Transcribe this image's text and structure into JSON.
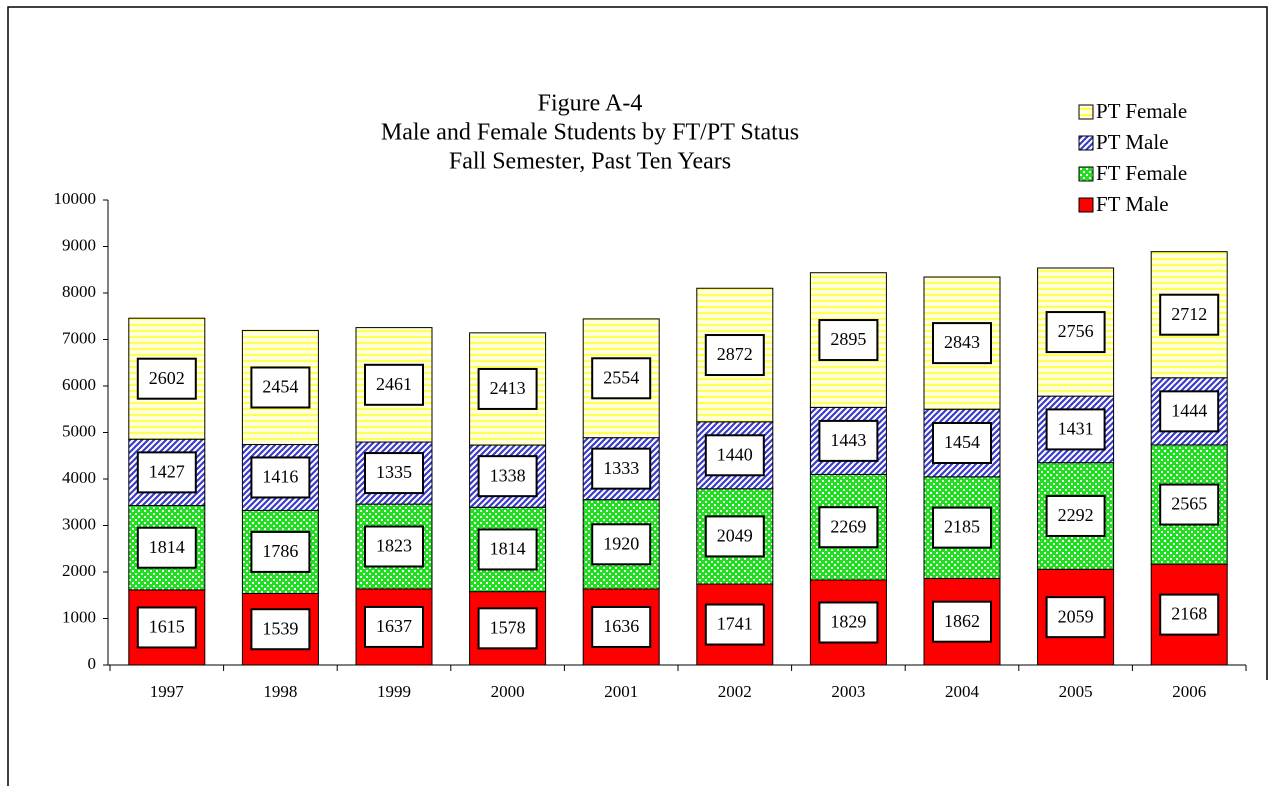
{
  "chart_data": {
    "type": "stacked_bar",
    "title": "Figure A-4",
    "subtitle": [
      "Male and Female Students by FT/PT Status",
      "Fall Semester, Past Ten Years"
    ],
    "categories": [
      "1997",
      "1998",
      "1999",
      "2000",
      "2001",
      "2002",
      "2003",
      "2004",
      "2005",
      "2006"
    ],
    "series": [
      {
        "name": "FT Male",
        "color": "#ff0000",
        "pattern": "solid",
        "values": [
          1615,
          1539,
          1637,
          1578,
          1636,
          1741,
          1829,
          1862,
          2059,
          2168
        ]
      },
      {
        "name": "FT Female",
        "color": "#22dd22",
        "pattern": "dots",
        "values": [
          1814,
          1786,
          1823,
          1814,
          1920,
          2049,
          2269,
          2185,
          2292,
          2565
        ]
      },
      {
        "name": "PT Male",
        "color": "#3a3acc",
        "pattern": "diagonal",
        "values": [
          1427,
          1416,
          1335,
          1338,
          1333,
          1440,
          1443,
          1454,
          1431,
          1444
        ]
      },
      {
        "name": "PT Female",
        "color": "#ffff55",
        "pattern": "horizontal",
        "values": [
          2602,
          2454,
          2461,
          2413,
          2554,
          2872,
          2895,
          2843,
          2756,
          2712
        ]
      }
    ],
    "ylim": [
      0,
      10000
    ],
    "yticks": [
      0,
      1000,
      2000,
      3000,
      4000,
      5000,
      6000,
      7000,
      8000,
      9000,
      10000
    ],
    "legend": "top-right",
    "data_labels": true
  }
}
